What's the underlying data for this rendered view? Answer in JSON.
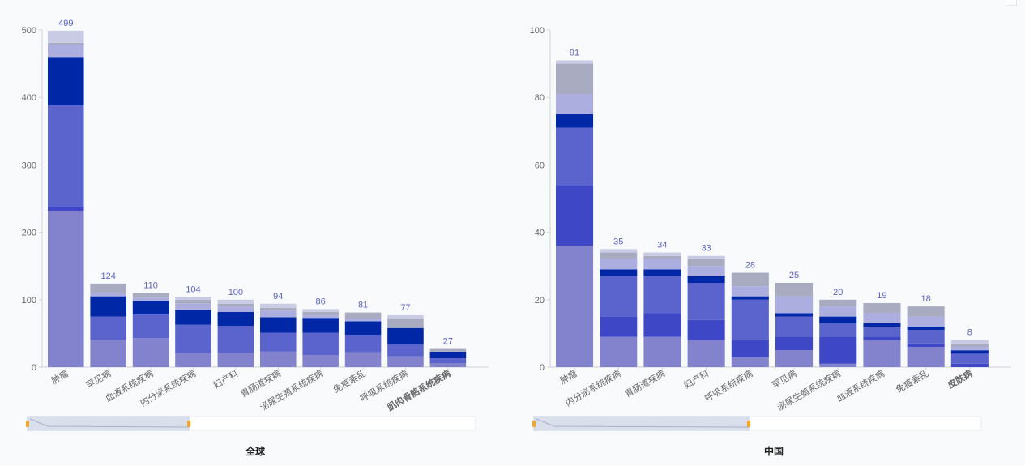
{
  "colors": {
    "segments": [
      "#8283cc",
      "#3e47c6",
      "#5b63cd",
      "#0027a6",
      "#acaee0",
      "#a9abc1",
      "#c9cbe4"
    ],
    "total_label": "#5a63c8"
  },
  "chart_data": [
    {
      "type": "bar",
      "stacked": true,
      "title": "全球",
      "ylim": [
        0,
        500
      ],
      "yticks": [
        0,
        100,
        200,
        300,
        400,
        500
      ],
      "categories": [
        "肿瘤",
        "罕见病",
        "血液系统疾病",
        "内分泌系统疾病",
        "妇产科",
        "胃肠道疾病",
        "泌尿生殖系统疾病",
        "免疫紊乱",
        "呼吸系统疾病",
        "肌肉骨骼系统疾病"
      ],
      "totals": [
        499,
        124,
        110,
        104,
        100,
        94,
        86,
        81,
        77,
        27
      ],
      "stacks": [
        [
          232,
          6,
          150,
          72,
          18,
          3,
          18
        ],
        [
          40,
          0,
          35,
          30,
          5,
          14,
          0
        ],
        [
          43,
          0,
          35,
          20,
          5,
          7,
          0
        ],
        [
          21,
          0,
          42,
          22,
          9,
          6,
          4
        ],
        [
          21,
          0,
          40,
          21,
          8,
          4,
          6
        ],
        [
          23,
          0,
          28,
          23,
          10,
          4,
          6
        ],
        [
          18,
          0,
          33,
          22,
          4,
          5,
          4
        ],
        [
          22,
          0,
          26,
          20,
          4,
          9,
          0
        ],
        [
          16,
          0,
          18,
          24,
          0,
          14,
          5
        ],
        [
          6,
          0,
          7,
          10,
          0,
          4,
          0
        ]
      ],
      "boldCategories": [
        "肌肉骨骼系统疾病"
      ],
      "zoom": {
        "start": 0,
        "end": 0.36
      }
    },
    {
      "type": "bar",
      "stacked": true,
      "title": "中国",
      "ylim": [
        0,
        100
      ],
      "yticks": [
        0,
        20,
        40,
        60,
        80,
        100
      ],
      "categories": [
        "肿瘤",
        "内分泌系统疾病",
        "胃肠道疾病",
        "妇产科",
        "呼吸系统疾病",
        "罕见病",
        "泌尿生殖系统疾病",
        "血液系统疾病",
        "免疫紊乱",
        "皮肤病"
      ],
      "totals": [
        91,
        35,
        34,
        33,
        28,
        25,
        20,
        19,
        18,
        8
      ],
      "stacks": [
        [
          36,
          18,
          17,
          4,
          6,
          9,
          1
        ],
        [
          9,
          6,
          12,
          2,
          3,
          2,
          1
        ],
        [
          9,
          7,
          11,
          2,
          3,
          1,
          1
        ],
        [
          8,
          6,
          11,
          2,
          3,
          2,
          1
        ],
        [
          3,
          5,
          12,
          1,
          3,
          4,
          0
        ],
        [
          5,
          4,
          6,
          1,
          5,
          4,
          0
        ],
        [
          1,
          8,
          4,
          2,
          3,
          2,
          0
        ],
        [
          8,
          1,
          3,
          1,
          3,
          3,
          0
        ],
        [
          6,
          1,
          4,
          1,
          3,
          3,
          0
        ],
        [
          0,
          1,
          3,
          1,
          1,
          1,
          1
        ]
      ],
      "boldCategories": [
        "皮肤病"
      ],
      "zoom": {
        "start": 0,
        "end": 0.48
      }
    }
  ]
}
